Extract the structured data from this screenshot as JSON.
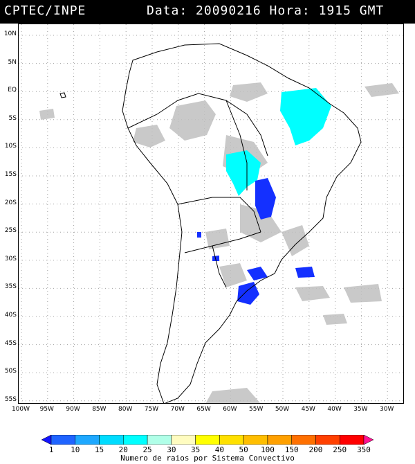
{
  "header": {
    "source": "CPTEC/INPE",
    "datetime": "Data: 20090216 Hora: 1915 GMT"
  },
  "map": {
    "lat_labels": [
      "10N",
      "5N",
      "EQ",
      "5S",
      "10S",
      "15S",
      "20S",
      "25S",
      "30S",
      "35S",
      "40S",
      "45S",
      "50S",
      "55S"
    ],
    "lon_labels": [
      "100W",
      "95W",
      "90W",
      "85W",
      "80W",
      "75W",
      "70W",
      "65W",
      "60W",
      "55W",
      "50W",
      "45W",
      "40W",
      "35W",
      "30W"
    ],
    "colors": {
      "land_outline": "#000000",
      "cloud": "#c0c0c0",
      "grid": "#a0a0a0"
    }
  },
  "colorbar": {
    "labels": [
      "1",
      "10",
      "15",
      "20",
      "25",
      "30",
      "35",
      "40",
      "50",
      "100",
      "150",
      "200",
      "250",
      "350"
    ],
    "colors": [
      "#1414ff",
      "#1f64ff",
      "#1ea8ff",
      "#00dcff",
      "#00ffff",
      "#b0ffe8",
      "#fffcc0",
      "#ffff00",
      "#ffe000",
      "#ffbe00",
      "#ffa000",
      "#ff7000",
      "#ff4000",
      "#ff0000",
      "#ff1493"
    ],
    "title": "Numero de raios por Sistema Convectivo"
  }
}
